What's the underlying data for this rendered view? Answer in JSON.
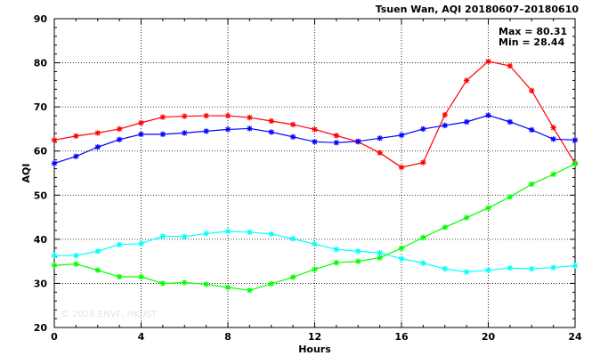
{
  "chart_data": {
    "type": "line",
    "title": "Tsuen Wan, AQI 20180607–20180610",
    "xlabel": "Hours",
    "ylabel": "AQI",
    "xlim": [
      0,
      24
    ],
    "ylim": [
      20,
      90
    ],
    "xticks": [
      0,
      4,
      8,
      12,
      16,
      20,
      24
    ],
    "yticks": [
      20,
      30,
      40,
      50,
      60,
      70,
      80,
      90
    ],
    "grid": true,
    "stats": {
      "max_text": "Max = 80.31",
      "min_text": "Min = 28.44"
    },
    "watermark": "© 2026  ENVF, HKUST",
    "x": [
      0,
      1,
      2,
      3,
      4,
      5,
      6,
      7,
      8,
      9,
      10,
      11,
      12,
      13,
      14,
      15,
      16,
      17,
      18,
      19,
      20,
      21,
      22,
      23,
      24
    ],
    "series": [
      {
        "color": "#ff0000",
        "values": [
          62.5,
          63.4,
          64.1,
          65.0,
          66.4,
          67.7,
          67.9,
          68.0,
          68.0,
          67.6,
          66.8,
          66.0,
          64.9,
          63.5,
          62.1,
          59.6,
          56.3,
          57.4,
          68.2,
          76.0,
          80.31,
          79.3,
          73.7,
          65.3,
          57.2
        ]
      },
      {
        "color": "#0000ff",
        "values": [
          57.2,
          58.8,
          60.9,
          62.6,
          63.8,
          63.8,
          64.1,
          64.5,
          64.9,
          65.1,
          64.3,
          63.2,
          62.1,
          61.9,
          62.2,
          62.9,
          63.6,
          65.0,
          65.8,
          66.6,
          68.1,
          66.6,
          64.8,
          62.7,
          62.5
        ]
      },
      {
        "color": "#00ffff",
        "values": [
          36.3,
          36.3,
          37.3,
          38.8,
          39.0,
          40.7,
          40.6,
          41.3,
          41.8,
          41.6,
          41.2,
          40.1,
          38.9,
          37.7,
          37.3,
          36.9,
          35.6,
          34.6,
          33.3,
          32.6,
          33.0,
          33.5,
          33.3,
          33.6,
          34.0
        ]
      },
      {
        "color": "#00ff00",
        "values": [
          34.1,
          34.4,
          33.0,
          31.5,
          31.5,
          30.0,
          30.2,
          29.8,
          29.1,
          28.44,
          29.9,
          31.4,
          33.2,
          34.7,
          35.0,
          35.8,
          38.0,
          40.4,
          42.7,
          44.9,
          47.1,
          49.6,
          52.5,
          54.7,
          57.1
        ]
      }
    ]
  }
}
